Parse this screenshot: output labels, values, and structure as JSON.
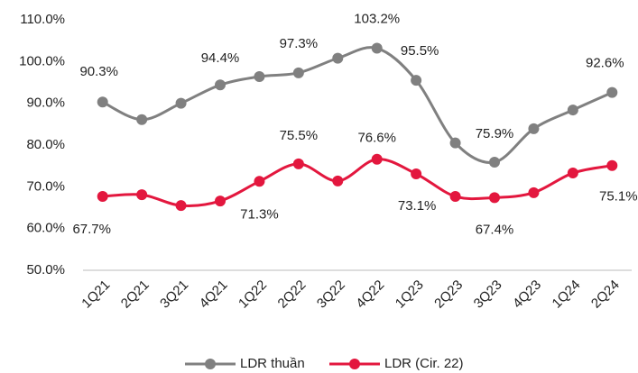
{
  "chart_data": {
    "type": "line",
    "categories": [
      "1Q21",
      "2Q21",
      "3Q21",
      "4Q21",
      "1Q22",
      "2Q22",
      "3Q22",
      "4Q22",
      "1Q23",
      "2Q23",
      "3Q23",
      "4Q23",
      "1Q24",
      "2Q24"
    ],
    "series": [
      {
        "name": "LDR thuần",
        "color": "#808080",
        "values": [
          90.3,
          86.1,
          90.0,
          94.4,
          96.4,
          97.3,
          100.8,
          103.2,
          95.5,
          80.5,
          75.9,
          83.9,
          88.4,
          92.6
        ],
        "value_labels": [
          "90.3%",
          null,
          null,
          "94.4%",
          null,
          "97.3%",
          null,
          "103.2%",
          "95.5%",
          null,
          "75.9%",
          null,
          null,
          "92.6%"
        ]
      },
      {
        "name": "LDR (Cir. 22)",
        "color": "#e3173e",
        "values": [
          67.7,
          68.1,
          65.5,
          66.6,
          71.3,
          75.5,
          71.4,
          76.6,
          73.1,
          67.7,
          67.4,
          68.6,
          73.3,
          75.1
        ],
        "value_labels": [
          "67.7%",
          null,
          null,
          null,
          "71.3%",
          "75.5%",
          null,
          "76.6%",
          "73.1%",
          null,
          "67.4%",
          null,
          null,
          "75.1%"
        ]
      }
    ],
    "ylim": [
      50,
      110
    ],
    "yticks": [
      {
        "value": 50,
        "label": "50.0%"
      },
      {
        "value": 60,
        "label": "60.0%"
      },
      {
        "value": 70,
        "label": "70.0%"
      },
      {
        "value": 80,
        "label": "80.0%"
      },
      {
        "value": 90,
        "label": "90.0%"
      },
      {
        "value": 100,
        "label": "100.0%"
      },
      {
        "value": 110,
        "label": "110.0%"
      }
    ],
    "grid": false,
    "legend": "bottom"
  }
}
